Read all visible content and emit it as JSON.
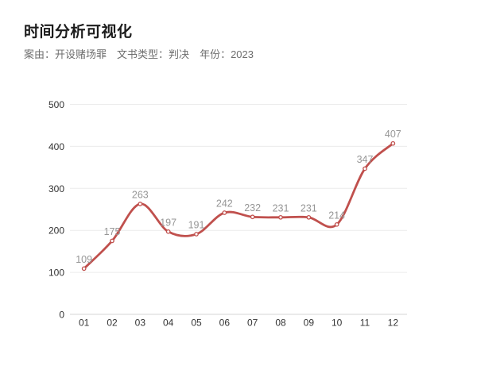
{
  "page": {
    "title": "时间分析可视化",
    "filters": [
      {
        "label": "案由：",
        "value": "开设赌场罪"
      },
      {
        "label": "文书类型：",
        "value": "判决"
      },
      {
        "label": "年份：",
        "value": "2023"
      }
    ]
  },
  "chart_data": {
    "type": "line",
    "title": "时间分析可视化",
    "categories": [
      "01",
      "02",
      "03",
      "04",
      "05",
      "06",
      "07",
      "08",
      "09",
      "10",
      "11",
      "12"
    ],
    "values": [
      109,
      175,
      263,
      197,
      191,
      242,
      232,
      231,
      231,
      214,
      347,
      407
    ],
    "xlabel": "",
    "ylabel": "",
    "ylim": [
      0,
      500
    ],
    "yticks": [
      0,
      100,
      200,
      300,
      400,
      500
    ],
    "grid": true,
    "legend": "none",
    "smooth": true,
    "show_point_labels": true,
    "colors": {
      "line": "#c0504d",
      "marker_fill": "#ffffff",
      "point_label": "#969696",
      "axis_label": "#333333",
      "gridline": "#ececec",
      "axis_line": "#d6d6d6"
    }
  }
}
